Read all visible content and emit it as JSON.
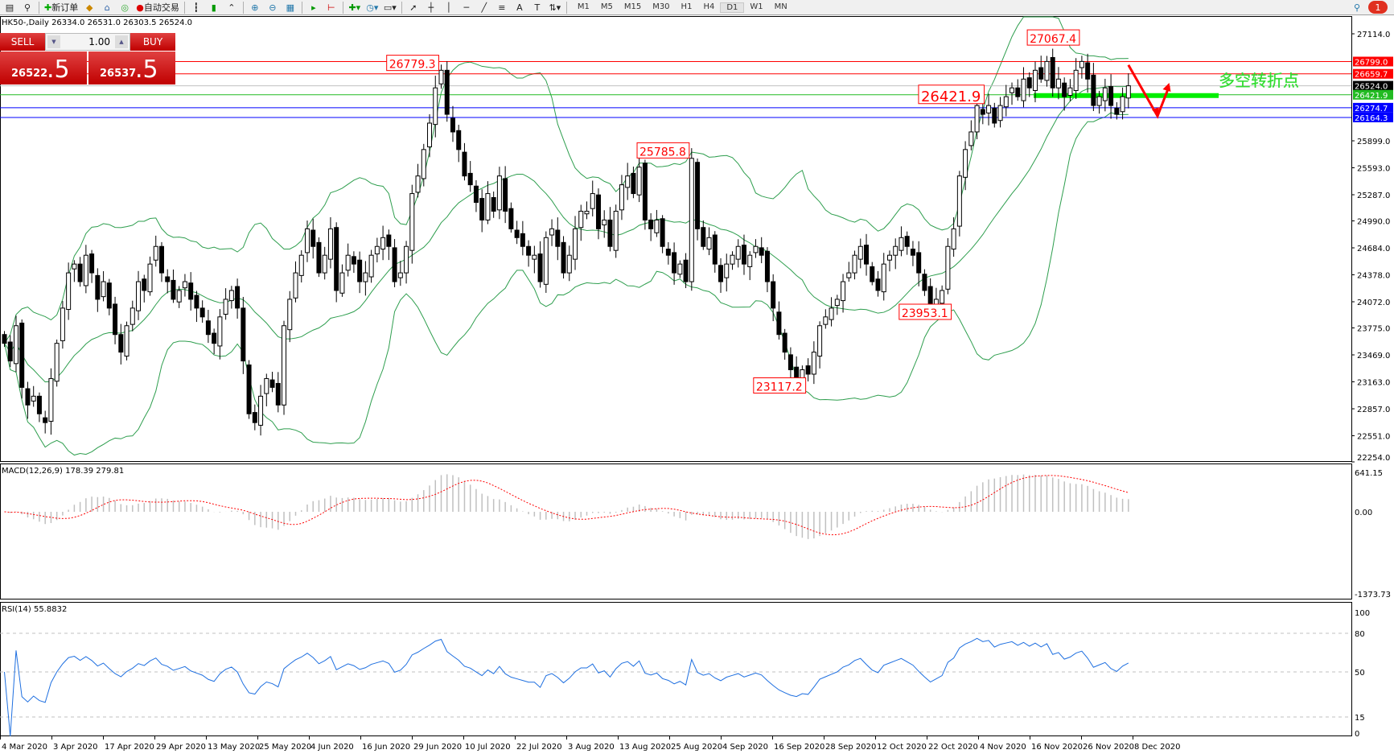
{
  "toolbar": {
    "new_order": "新订单",
    "auto_trading": "自动交易",
    "timeframes": [
      "M1",
      "M5",
      "M15",
      "M30",
      "H1",
      "H4",
      "D1",
      "W1",
      "MN"
    ],
    "active_timeframe": "D1",
    "notification_count": "1"
  },
  "chart_header": "HK50-,Daily  26334.0 26531.0 26303.5 26524.0",
  "trade_panel": {
    "sell_label": "SELL",
    "buy_label": "BUY",
    "lot": "1.00",
    "sell_big": "26522",
    "sell_small": ".5",
    "buy_big": "26537",
    "buy_small": ".5"
  },
  "price_axis": [
    "27114.0",
    "25899.0",
    "25593.0",
    "25287.0",
    "24990.0",
    "24684.0",
    "24378.0",
    "24072.0",
    "23775.0",
    "23469.0",
    "23163.0",
    "22857.0",
    "22551.0",
    "22254.0"
  ],
  "levels": [
    {
      "value": "26799.0",
      "color": "#ff0000"
    },
    {
      "value": "26659.7",
      "color": "#ff0000"
    },
    {
      "value": "26524.0",
      "color": "#000000",
      "line": "#c0c0c0"
    },
    {
      "value": "26421.9",
      "color": "#22bb22"
    },
    {
      "value": "26274.7",
      "color": "#0000ff"
    },
    {
      "value": "26164.3",
      "color": "#0000ff"
    }
  ],
  "annotations": [
    {
      "text": "26779.3",
      "price": 26779.3,
      "index": 75
    },
    {
      "text": "25785.8",
      "price": 25785.8,
      "index": 118
    },
    {
      "text": "23117.2",
      "price": 23117.2,
      "index": 138
    },
    {
      "text": "23953.1",
      "price": 23953.1,
      "index": 163
    },
    {
      "text": "27067.4",
      "price": 27067.4,
      "index": 185
    },
    {
      "text": "26421.9",
      "price": 26421.9,
      "index": 171
    }
  ],
  "signal_text": "多空转折点",
  "macd": {
    "label": "MACD(12,26,9) 178.39 279.81",
    "axis": [
      "641.15",
      "0.00",
      "-1373.73"
    ]
  },
  "rsi": {
    "label": "RSI(14) 55.8832",
    "axis": [
      "100",
      "80",
      "50",
      "15",
      "0"
    ]
  },
  "dates": [
    "4 Mar 2020",
    "3 Apr 2020",
    "17 Apr 2020",
    "29 Apr 2020",
    "13 May 2020",
    "25 May 2020",
    "4 Jun 2020",
    "16 Jun 2020",
    "29 Jun 2020",
    "10 Jul 2020",
    "22 Jul 2020",
    "3 Aug 2020",
    "13 Aug 2020",
    "25 Aug 2020",
    "4 Sep 2020",
    "16 Sep 2020",
    "28 Sep 2020",
    "12 Oct 2020",
    "22 Oct 2020",
    "4 Nov 2020",
    "16 Nov 2020",
    "26 Nov 2020",
    "8 Dec 2020"
  ],
  "colors": {
    "bands": "#2e9e4e",
    "rsi": "#1e6fe0",
    "macd_signal": "#ff0000",
    "macd_hist": "#c0c0c0",
    "signal_text": "#33dd33"
  },
  "chart_data": {
    "type": "candlestick",
    "symbol": "HK50-",
    "timeframe": "Daily",
    "ylim": [
      22254,
      27114
    ],
    "closes": [
      23600,
      23400,
      23800,
      23100,
      22900,
      23000,
      22800,
      22700,
      23200,
      23600,
      24000,
      24400,
      24500,
      24300,
      24600,
      24400,
      24100,
      24300,
      24000,
      23700,
      23500,
      23800,
      24000,
      24300,
      24200,
      24500,
      24700,
      24400,
      24300,
      24100,
      24200,
      24300,
      24100,
      24000,
      23900,
      23700,
      23600,
      23900,
      24100,
      24200,
      24000,
      23400,
      22800,
      22700,
      23000,
      23200,
      23100,
      22900,
      23800,
      24100,
      24400,
      24600,
      24900,
      24700,
      24400,
      24600,
      24900,
      24200,
      24400,
      24600,
      24500,
      24300,
      24400,
      24600,
      24700,
      24800,
      24700,
      24300,
      24400,
      24700,
      25300,
      25500,
      25800,
      26100,
      26500,
      26700,
      26200,
      26000,
      25800,
      25500,
      25400,
      25200,
      25000,
      25300,
      25100,
      25500,
      25100,
      24900,
      24800,
      24700,
      24600,
      24600,
      24300,
      24800,
      24900,
      24700,
      24400,
      24600,
      24900,
      25100,
      25100,
      25300,
      24900,
      25000,
      24700,
      25100,
      25400,
      25500,
      25300,
      25600,
      25000,
      24900,
      25000,
      24700,
      24600,
      24400,
      24500,
      24300,
      25700,
      24900,
      24700,
      24800,
      24500,
      24300,
      24500,
      24600,
      24700,
      24500,
      24600,
      24700,
      24600,
      24300,
      24000,
      23700,
      23500,
      23300,
      23200,
      23300,
      23250,
      23500,
      23800,
      23900,
      24000,
      24100,
      24300,
      24400,
      24600,
      24700,
      24500,
      24300,
      24200,
      24500,
      24600,
      24700,
      24800,
      24700,
      24600,
      24400,
      24200,
      24000,
      24100,
      24200,
      24700,
      24900,
      25500,
      25800,
      26000,
      26300,
      26200,
      26300,
      26100,
      26300,
      26400,
      26500,
      26400,
      26600,
      26500,
      26700,
      26600,
      26800,
      26500,
      26600,
      26400,
      26500,
      26700,
      26800,
      26600,
      26300,
      26400,
      26500,
      26300,
      26200,
      26400,
      26524
    ]
  }
}
